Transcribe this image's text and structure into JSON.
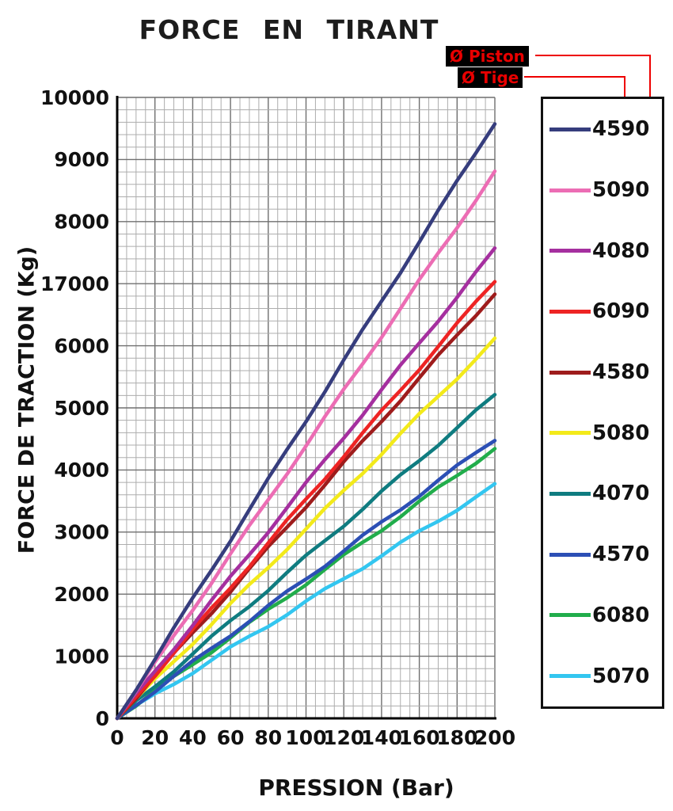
{
  "title": "FORCE EN TIRANT",
  "annotations": {
    "piston_label": "Ø Piston",
    "tige_label": "Ø Tige",
    "connector_color": "#ee0000"
  },
  "chart_data": {
    "type": "line",
    "title": "FORCE EN TIRANT",
    "xlabel": "PRESSION (Bar)",
    "ylabel": "FORCE DE TRACTION (Kg)",
    "xlim": [
      0,
      200
    ],
    "ylim": [
      0,
      10000
    ],
    "x": [
      0,
      20,
      40,
      60,
      80,
      100,
      120,
      140,
      160,
      180,
      200
    ],
    "x_tick_labels": [
      "0",
      "20",
      "40",
      "60",
      "80",
      "100",
      "120",
      "140",
      "160",
      "180",
      "200"
    ],
    "y_ticks": [
      0,
      1000,
      2000,
      3000,
      4000,
      5000,
      6000,
      7000,
      8000,
      9000,
      10000
    ],
    "y_tick_labels": [
      "0",
      "1000",
      "2000",
      "3000",
      "4000",
      "5000",
      "6000",
      "17000",
      "8000",
      "9000",
      "10000"
    ],
    "grid": {
      "visible": true,
      "minor_x_step": 5,
      "minor_y_step": 200,
      "major_x_step": 20,
      "major_y_step": 1000
    },
    "legend_position": "right",
    "series": [
      {
        "name": "4590",
        "color": "#363d7d",
        "values": [
          0,
          960,
          1920,
          2880,
          3840,
          4800,
          5760,
          6720,
          7680,
          8640,
          9600
        ]
      },
      {
        "name": "5090",
        "color": "#ec6db4",
        "values": [
          0,
          880,
          1760,
          2640,
          3520,
          4400,
          5280,
          6160,
          7040,
          7920,
          8800
        ]
      },
      {
        "name": "4080",
        "color": "#a52f9f",
        "values": [
          0,
          755,
          1510,
          2265,
          3020,
          3775,
          4530,
          5285,
          6040,
          6795,
          7550
        ]
      },
      {
        "name": "6090",
        "color": "#ee2424",
        "values": [
          0,
          705,
          1410,
          2115,
          2820,
          3525,
          4230,
          4935,
          5640,
          6345,
          7050
        ]
      },
      {
        "name": "4580",
        "color": "#9e1c1c",
        "values": [
          0,
          685,
          1370,
          2055,
          2740,
          3425,
          4110,
          4795,
          5480,
          6165,
          6850
        ]
      },
      {
        "name": "5080",
        "color": "#f3ea1a",
        "values": [
          0,
          610,
          1220,
          1830,
          2440,
          3050,
          3660,
          4270,
          4880,
          5490,
          6100
        ]
      },
      {
        "name": "4070",
        "color": "#0f7c80",
        "values": [
          0,
          520,
          1040,
          1560,
          2080,
          2600,
          3120,
          3640,
          4160,
          4680,
          5200
        ]
      },
      {
        "name": "4570",
        "color": "#2c4fb5",
        "values": [
          0,
          450,
          900,
          1350,
          1800,
          2250,
          2700,
          3150,
          3600,
          4050,
          4500
        ]
      },
      {
        "name": "6080",
        "color": "#21ad4b",
        "values": [
          0,
          435,
          870,
          1305,
          1740,
          2175,
          2610,
          3045,
          3480,
          3915,
          4350
        ]
      },
      {
        "name": "5070",
        "color": "#33c6f0",
        "values": [
          0,
          375,
          750,
          1125,
          1500,
          1875,
          2250,
          2625,
          3000,
          3375,
          3750
        ]
      }
    ]
  }
}
